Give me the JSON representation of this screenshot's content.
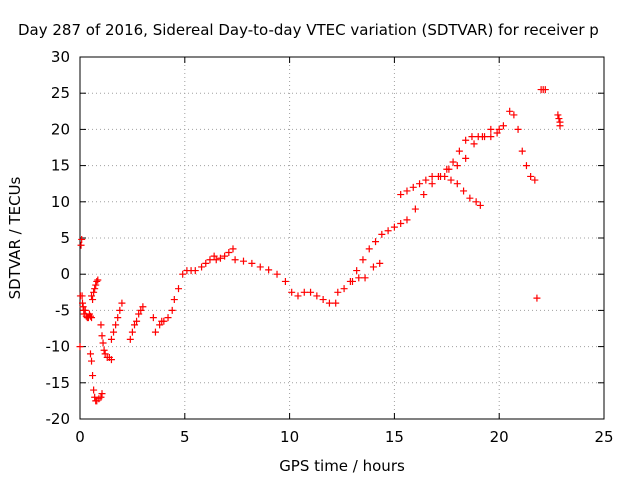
{
  "chart_data": {
    "type": "scatter",
    "title": "Day 287 of 2016, Sidereal Day-to-day VTEC variation (SDTVAR) for receiver p",
    "xlabel": "GPS time / hours",
    "ylabel": "SDTVAR / TECUs",
    "xlim": [
      0,
      25
    ],
    "ylim": [
      -20,
      30
    ],
    "xticks": [
      0,
      5,
      10,
      15,
      20,
      25
    ],
    "yticks": [
      -20,
      -15,
      -10,
      -5,
      0,
      5,
      10,
      15,
      20,
      25,
      30
    ],
    "grid": true,
    "marker": "plus",
    "color": "#ff0000",
    "series": [
      {
        "x": [
          0.0,
          0.02,
          0.05,
          0.08,
          0.1,
          0.12,
          0.15,
          0.18,
          0.2,
          0.25,
          0.3,
          0.35,
          0.4,
          0.45,
          0.5,
          0.55
        ],
        "y": [
          -10,
          -3,
          4,
          4.8,
          -3,
          -4,
          -4.5,
          -5,
          -5.5,
          -5,
          -5.8,
          -6,
          -6,
          -5.5,
          -5.8,
          -6
        ]
      },
      {
        "x": [
          0.5,
          0.55,
          0.6,
          0.65,
          0.7,
          0.75,
          0.8,
          0.9,
          1.0,
          1.05
        ],
        "y": [
          -11,
          -12,
          -14,
          -16,
          -17,
          -17.5,
          -17.5,
          -17.2,
          -17,
          -16.5
        ]
      },
      {
        "x": [
          0.55,
          0.6,
          0.65,
          0.7,
          0.75,
          0.8,
          0.85
        ],
        "y": [
          -3,
          -3.5,
          -2.5,
          -2,
          -1.5,
          -1,
          -0.8
        ]
      },
      {
        "x": [
          1.0,
          1.05,
          1.1,
          1.15,
          1.2,
          1.3,
          1.4,
          1.5
        ],
        "y": [
          -7,
          -8.5,
          -9.5,
          -10.5,
          -11,
          -11.5,
          -11.5,
          -11.8
        ]
      },
      {
        "x": [
          1.5,
          1.6,
          1.7,
          1.8,
          1.9,
          2.0
        ],
        "y": [
          -9,
          -8,
          -7,
          -6,
          -5,
          -4
        ]
      },
      {
        "x": [
          2.4,
          2.5,
          2.6,
          2.7,
          2.8,
          2.9,
          3.0
        ],
        "y": [
          -9,
          -8,
          -7,
          -6.5,
          -5.5,
          -5,
          -4.5
        ]
      },
      {
        "x": [
          3.5,
          3.6,
          3.8,
          3.9,
          4.0,
          4.2,
          4.4,
          4.5,
          4.7,
          4.9,
          5.1,
          5.3,
          5.5,
          5.8,
          6.0,
          6.2,
          6.4,
          6.5,
          6.7,
          6.9,
          7.1,
          7.3
        ],
        "y": [
          -6,
          -8,
          -7,
          -6.5,
          -6.5,
          -6,
          -5,
          -3.5,
          -2,
          0,
          0.5,
          0.5,
          0.5,
          1,
          1.5,
          2,
          2.5,
          2,
          2.2,
          2.5,
          3,
          3.5
        ]
      },
      {
        "x": [
          7.4,
          7.8,
          8.2,
          8.6,
          9.0,
          9.4,
          9.8,
          10.1,
          10.4,
          10.7,
          11.0,
          11.3,
          11.6,
          11.9,
          12.2
        ],
        "y": [
          2,
          1.8,
          1.5,
          1,
          0.6,
          0,
          -1,
          -2.5,
          -3,
          -2.5,
          -2.5,
          -3,
          -3.5,
          -4,
          -4
        ]
      },
      {
        "x": [
          12.3,
          12.6,
          12.9,
          13.2,
          13.5,
          13.8,
          14.1,
          14.4,
          14.7,
          15.0,
          15.3,
          15.6,
          16.0,
          16.4,
          16.8,
          17.2,
          17.6,
          18.0,
          18.4,
          18.8,
          19.2,
          19.6,
          20.0
        ],
        "y": [
          -2.5,
          -2,
          -1,
          0.5,
          2,
          3.5,
          4.5,
          5.5,
          6,
          6.5,
          7,
          7.5,
          9,
          11,
          12.5,
          13.5,
          14.5,
          15,
          16,
          18,
          19,
          20,
          20
        ]
      },
      {
        "x": [
          13.0,
          13.3,
          13.6,
          14.0,
          14.3
        ],
        "y": [
          -1,
          -0.5,
          -0.5,
          1,
          1.5
        ]
      },
      {
        "x": [
          15.3,
          15.6,
          15.9,
          16.2,
          16.5,
          16.8,
          17.1,
          17.4,
          17.7,
          18.0,
          18.3,
          18.6,
          18.9,
          19.1
        ],
        "y": [
          11,
          11.5,
          12,
          12.5,
          13,
          13.5,
          13.5,
          13.5,
          13,
          12.5,
          11.5,
          10.5,
          10,
          9.5
        ]
      },
      {
        "x": [
          17.5,
          17.8,
          18.1,
          18.4,
          18.7,
          19.0,
          19.3,
          19.6,
          19.9,
          20.2,
          20.5,
          20.7,
          20.9,
          21.1,
          21.3,
          21.5,
          21.7
        ],
        "y": [
          14.5,
          15.5,
          17,
          18.5,
          19,
          19,
          19,
          19,
          19.5,
          20.5,
          22.5,
          22,
          20,
          17,
          15,
          13.5,
          13
        ]
      },
      {
        "x": [
          21.8,
          22.0,
          22.1,
          22.2
        ],
        "y": [
          -3.3,
          25.5,
          25.5,
          25.5
        ]
      },
      {
        "x": [
          22.8,
          22.85,
          22.9,
          22.9
        ],
        "y": [
          22,
          21.5,
          21,
          20.5
        ]
      }
    ]
  }
}
